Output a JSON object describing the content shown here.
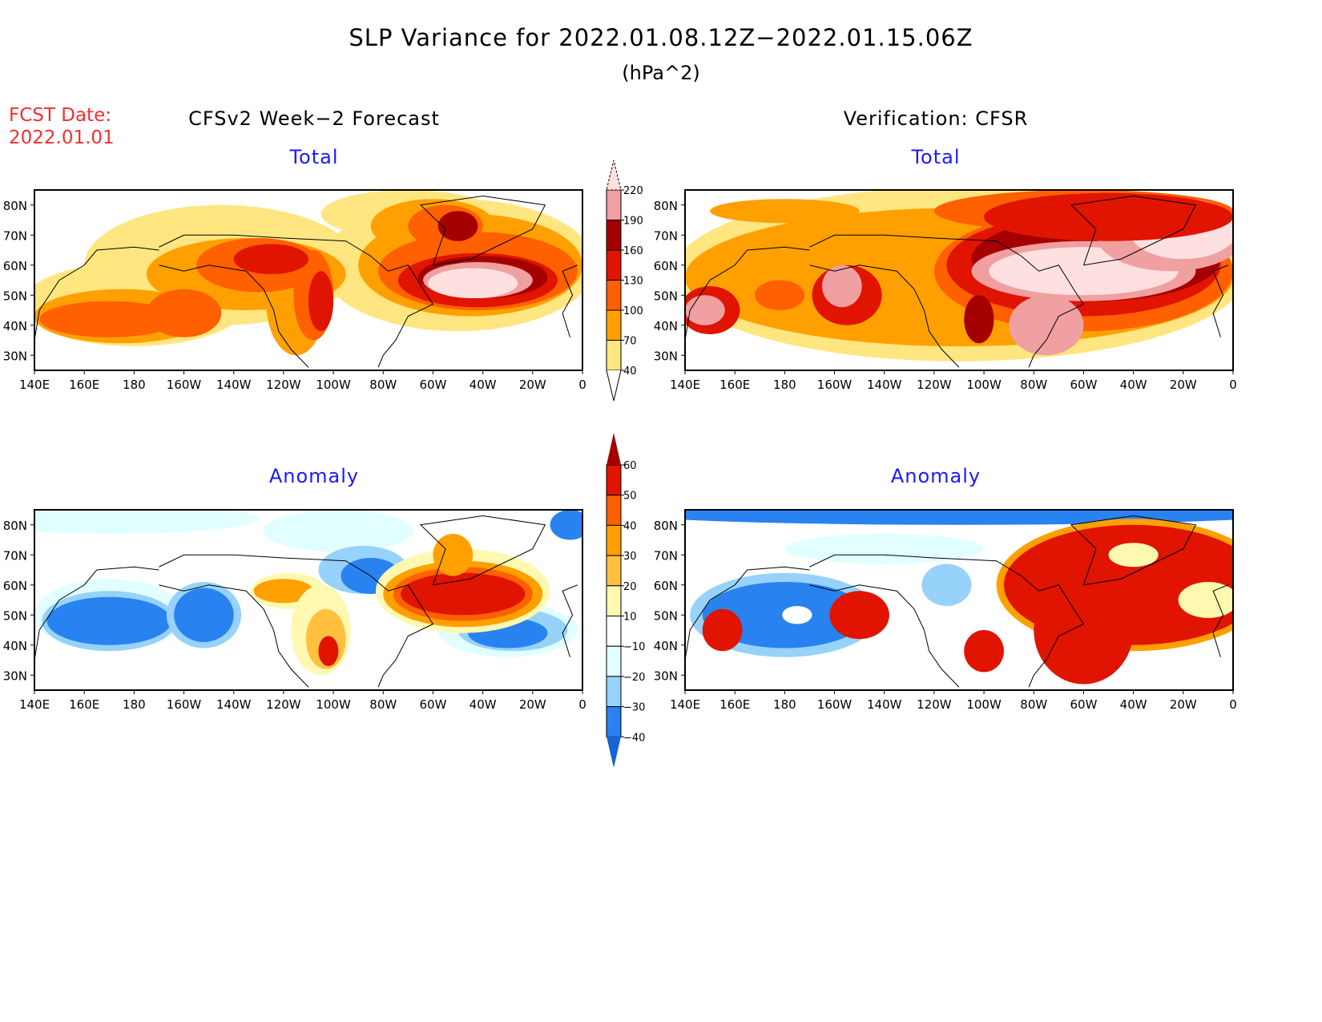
{
  "title": "SLP Variance for 2022.01.08.12Z−2022.01.15.06Z",
  "units": "(hPa^2)",
  "fcst_label": "FCST Date:",
  "fcst_date": "2022.01.01",
  "left_header": "CFSv2 Week−2 Forecast",
  "right_header": "Verification: CFSR",
  "total_label": "Total",
  "anomaly_label": "Anomaly",
  "chart_data": {
    "type": "heatmap",
    "lat_ticks": [
      "80N",
      "70N",
      "60N",
      "50N",
      "40N",
      "30N"
    ],
    "lat_values": [
      80,
      70,
      60,
      50,
      40,
      30
    ],
    "lon_ticks": [
      "140E",
      "160E",
      "180",
      "160W",
      "140W",
      "120W",
      "100W",
      "80W",
      "60W",
      "40W",
      "20W",
      "0"
    ],
    "lon_values": [
      140,
      160,
      180,
      200,
      220,
      240,
      260,
      280,
      300,
      320,
      340,
      360
    ],
    "lat_range": [
      25,
      85
    ],
    "lon_range": [
      140,
      360
    ],
    "total_colorbar": {
      "levels": [
        "40",
        "70",
        "100",
        "130",
        "160",
        "190",
        "220"
      ],
      "colors": [
        "#ffe680",
        "#ffa000",
        "#ff6000",
        "#e01400",
        "#a50000",
        "#f0a0a0",
        "#ffe0e0"
      ]
    },
    "anomaly_colorbar": {
      "levels": [
        "60",
        "50",
        "40",
        "30",
        "20",
        "10",
        "−10",
        "−20",
        "−30",
        "−40"
      ],
      "colors": {
        "gt60": "#a50000",
        "50": "#e01400",
        "40": "#ff6000",
        "30": "#ffa000",
        "20": "#ffc040",
        "10": "#fff8b0",
        "0": "#ffffff",
        "-10": "#e1ffff",
        "-20": "#96d2fa",
        "-30": "#2882f0",
        "lt40": "#1464d2"
      }
    },
    "panels": [
      {
        "name": "forecast-total",
        "kind": "total",
        "blobs": [
          [
            180,
            47,
            45,
            14,
            0
          ],
          [
            215,
            60,
            55,
            20,
            0
          ],
          [
            310,
            60,
            55,
            22,
            0
          ],
          [
            290,
            77,
            35,
            8,
            0
          ],
          [
            175,
            43,
            35,
            9,
            1
          ],
          [
            225,
            57,
            40,
            12,
            1
          ],
          [
            245,
            48,
            12,
            18,
            1
          ],
          [
            315,
            60,
            45,
            17,
            1
          ],
          [
            300,
            73,
            25,
            9,
            1
          ],
          [
            170,
            42,
            28,
            6,
            2
          ],
          [
            200,
            44,
            15,
            8,
            2
          ],
          [
            230,
            60,
            25,
            9,
            2
          ],
          [
            252,
            50,
            8,
            15,
            2
          ],
          [
            318,
            58,
            40,
            13,
            2
          ],
          [
            305,
            73,
            15,
            7,
            2
          ],
          [
            235,
            62,
            15,
            5,
            3
          ],
          [
            255,
            48,
            5,
            10,
            3
          ],
          [
            318,
            55,
            32,
            9,
            3
          ],
          [
            310,
            73,
            8,
            5,
            4
          ],
          [
            320,
            56,
            26,
            7,
            4
          ],
          [
            318,
            55,
            22,
            6,
            5
          ],
          [
            316,
            54,
            18,
            5,
            6
          ]
        ]
      },
      {
        "name": "verification-total",
        "kind": "total",
        "blobs": [
          [
            250,
            57,
            115,
            29,
            0
          ],
          [
            250,
            56,
            110,
            23,
            1
          ],
          [
            300,
            78,
            60,
            7,
            2
          ],
          [
            180,
            78,
            30,
            4,
            1
          ],
          [
            150,
            45,
            12,
            8,
            3
          ],
          [
            148,
            45,
            8,
            5,
            5
          ],
          [
            178,
            50,
            10,
            5,
            2
          ],
          [
            205,
            50,
            14,
            10,
            3
          ],
          [
            203,
            53,
            8,
            7,
            5
          ],
          [
            300,
            58,
            60,
            20,
            2
          ],
          [
            300,
            60,
            55,
            17,
            3
          ],
          [
            305,
            62,
            50,
            14,
            4
          ],
          [
            300,
            58,
            45,
            10,
            5
          ],
          [
            300,
            58,
            38,
            8,
            6
          ],
          [
            335,
            70,
            30,
            12,
            5
          ],
          [
            340,
            72,
            22,
            10,
            6
          ],
          [
            285,
            40,
            15,
            10,
            5
          ],
          [
            258,
            42,
            6,
            8,
            4
          ],
          [
            310,
            76,
            50,
            8,
            3
          ]
        ]
      },
      {
        "name": "forecast-anomaly",
        "kind": "anomaly",
        "blobs": [
          [
            170,
            82,
            60,
            5,
            -15
          ],
          [
            262,
            78,
            30,
            7,
            -15
          ],
          [
            272,
            65,
            18,
            8,
            -25
          ],
          [
            275,
            63,
            12,
            6,
            -35
          ],
          [
            170,
            50,
            30,
            12,
            -15
          ],
          [
            170,
            48,
            27,
            10,
            -25
          ],
          [
            170,
            48,
            25,
            8,
            -35
          ],
          [
            208,
            50,
            15,
            11,
            -25
          ],
          [
            208,
            50,
            12,
            9,
            -35
          ],
          [
            330,
            45,
            28,
            9,
            -15
          ],
          [
            332,
            45,
            22,
            7,
            -25
          ],
          [
            330,
            44,
            16,
            5,
            -35
          ],
          [
            355,
            80,
            8,
            5,
            -35
          ],
          [
            242,
            58,
            15,
            6,
            15
          ],
          [
            240,
            58,
            12,
            4,
            35
          ],
          [
            255,
            45,
            12,
            15,
            15
          ],
          [
            257,
            42,
            8,
            10,
            25
          ],
          [
            258,
            38,
            4,
            5,
            55
          ],
          [
            312,
            58,
            35,
            14,
            15
          ],
          [
            312,
            57,
            32,
            11,
            35
          ],
          [
            312,
            57,
            28,
            9,
            45
          ],
          [
            312,
            57,
            25,
            7,
            55
          ],
          [
            308,
            70,
            8,
            7,
            35
          ]
        ]
      },
      {
        "name": "verification-anomaly",
        "kind": "anomaly",
        "blobs": [
          [
            250,
            84,
            135,
            4,
            -35
          ],
          [
            220,
            72,
            40,
            5,
            -15
          ],
          [
            180,
            50,
            38,
            14,
            -25
          ],
          [
            180,
            50,
            33,
            11,
            -35
          ],
          [
            185,
            50,
            6,
            3,
            0
          ],
          [
            155,
            45,
            8,
            7,
            55
          ],
          [
            210,
            50,
            12,
            8,
            55
          ],
          [
            245,
            60,
            10,
            7,
            -25
          ],
          [
            320,
            60,
            55,
            22,
            35
          ],
          [
            320,
            60,
            52,
            20,
            55
          ],
          [
            300,
            45,
            20,
            18,
            55
          ],
          [
            260,
            38,
            8,
            7,
            55
          ],
          [
            320,
            70,
            10,
            4,
            15
          ],
          [
            350,
            55,
            12,
            6,
            15
          ]
        ]
      }
    ]
  }
}
